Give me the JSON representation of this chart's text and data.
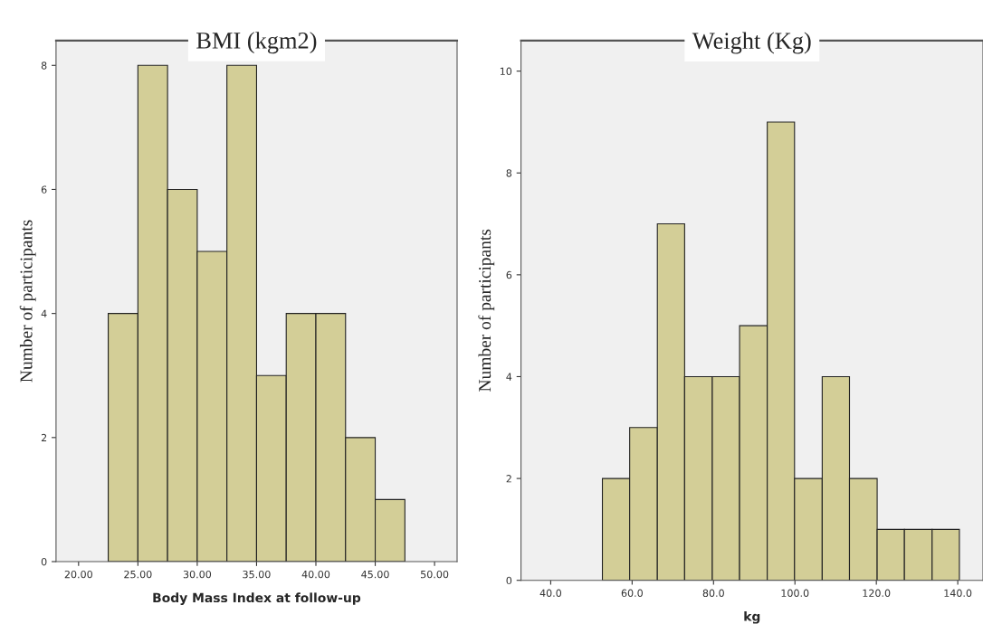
{
  "chart_data": [
    {
      "type": "histogram",
      "title": "BMI (kgm2)",
      "xlabel": "Body Mass Index at follow-up",
      "ylabel": "Number of participants",
      "bins": [
        22.5,
        25.0,
        27.5,
        30.0,
        32.5,
        35.0,
        37.5,
        40.0,
        42.5,
        45.0,
        47.5
      ],
      "values": [
        4,
        8,
        6,
        5,
        8,
        3,
        4,
        4,
        2,
        1
      ],
      "color": "#d3ce97",
      "xlim": [
        18.1,
        51.9
      ],
      "xticks": [
        {
          "value": 20,
          "label": "20.00"
        },
        {
          "value": 25,
          "label": "25.00"
        },
        {
          "value": 30,
          "label": "30.00"
        },
        {
          "value": 35,
          "label": "35.00"
        },
        {
          "value": 40,
          "label": "40.00"
        },
        {
          "value": 45,
          "label": "45.00"
        },
        {
          "value": 50,
          "label": "50.00"
        }
      ],
      "ylim": [
        0,
        8.4
      ],
      "yticks": [
        0,
        2,
        4,
        6,
        8
      ],
      "grid": false
    },
    {
      "type": "histogram",
      "title": "Weight (Kg)",
      "xlabel": "kg",
      "ylabel": "Number of participants",
      "bins": [
        52.7,
        59.4,
        66.2,
        72.9,
        79.7,
        86.4,
        93.2,
        99.9,
        106.7,
        113.4,
        120.2,
        126.9,
        133.7,
        140.4
      ],
      "values": [
        2,
        3,
        7,
        4,
        4,
        5,
        9,
        2,
        4,
        2,
        1,
        1,
        1
      ],
      "color": "#d3ce97",
      "xlim": [
        32.7,
        146.2
      ],
      "xticks": [
        {
          "value": 40,
          "label": "40.0"
        },
        {
          "value": 60,
          "label": "60.0"
        },
        {
          "value": 80,
          "label": "80.0"
        },
        {
          "value": 100,
          "label": "100.0"
        },
        {
          "value": 120,
          "label": "120.0"
        },
        {
          "value": 140,
          "label": "140.0"
        }
      ],
      "ylim": [
        0,
        10.6
      ],
      "yticks": [
        0,
        2,
        4,
        6,
        8,
        10
      ],
      "grid": false
    }
  ]
}
